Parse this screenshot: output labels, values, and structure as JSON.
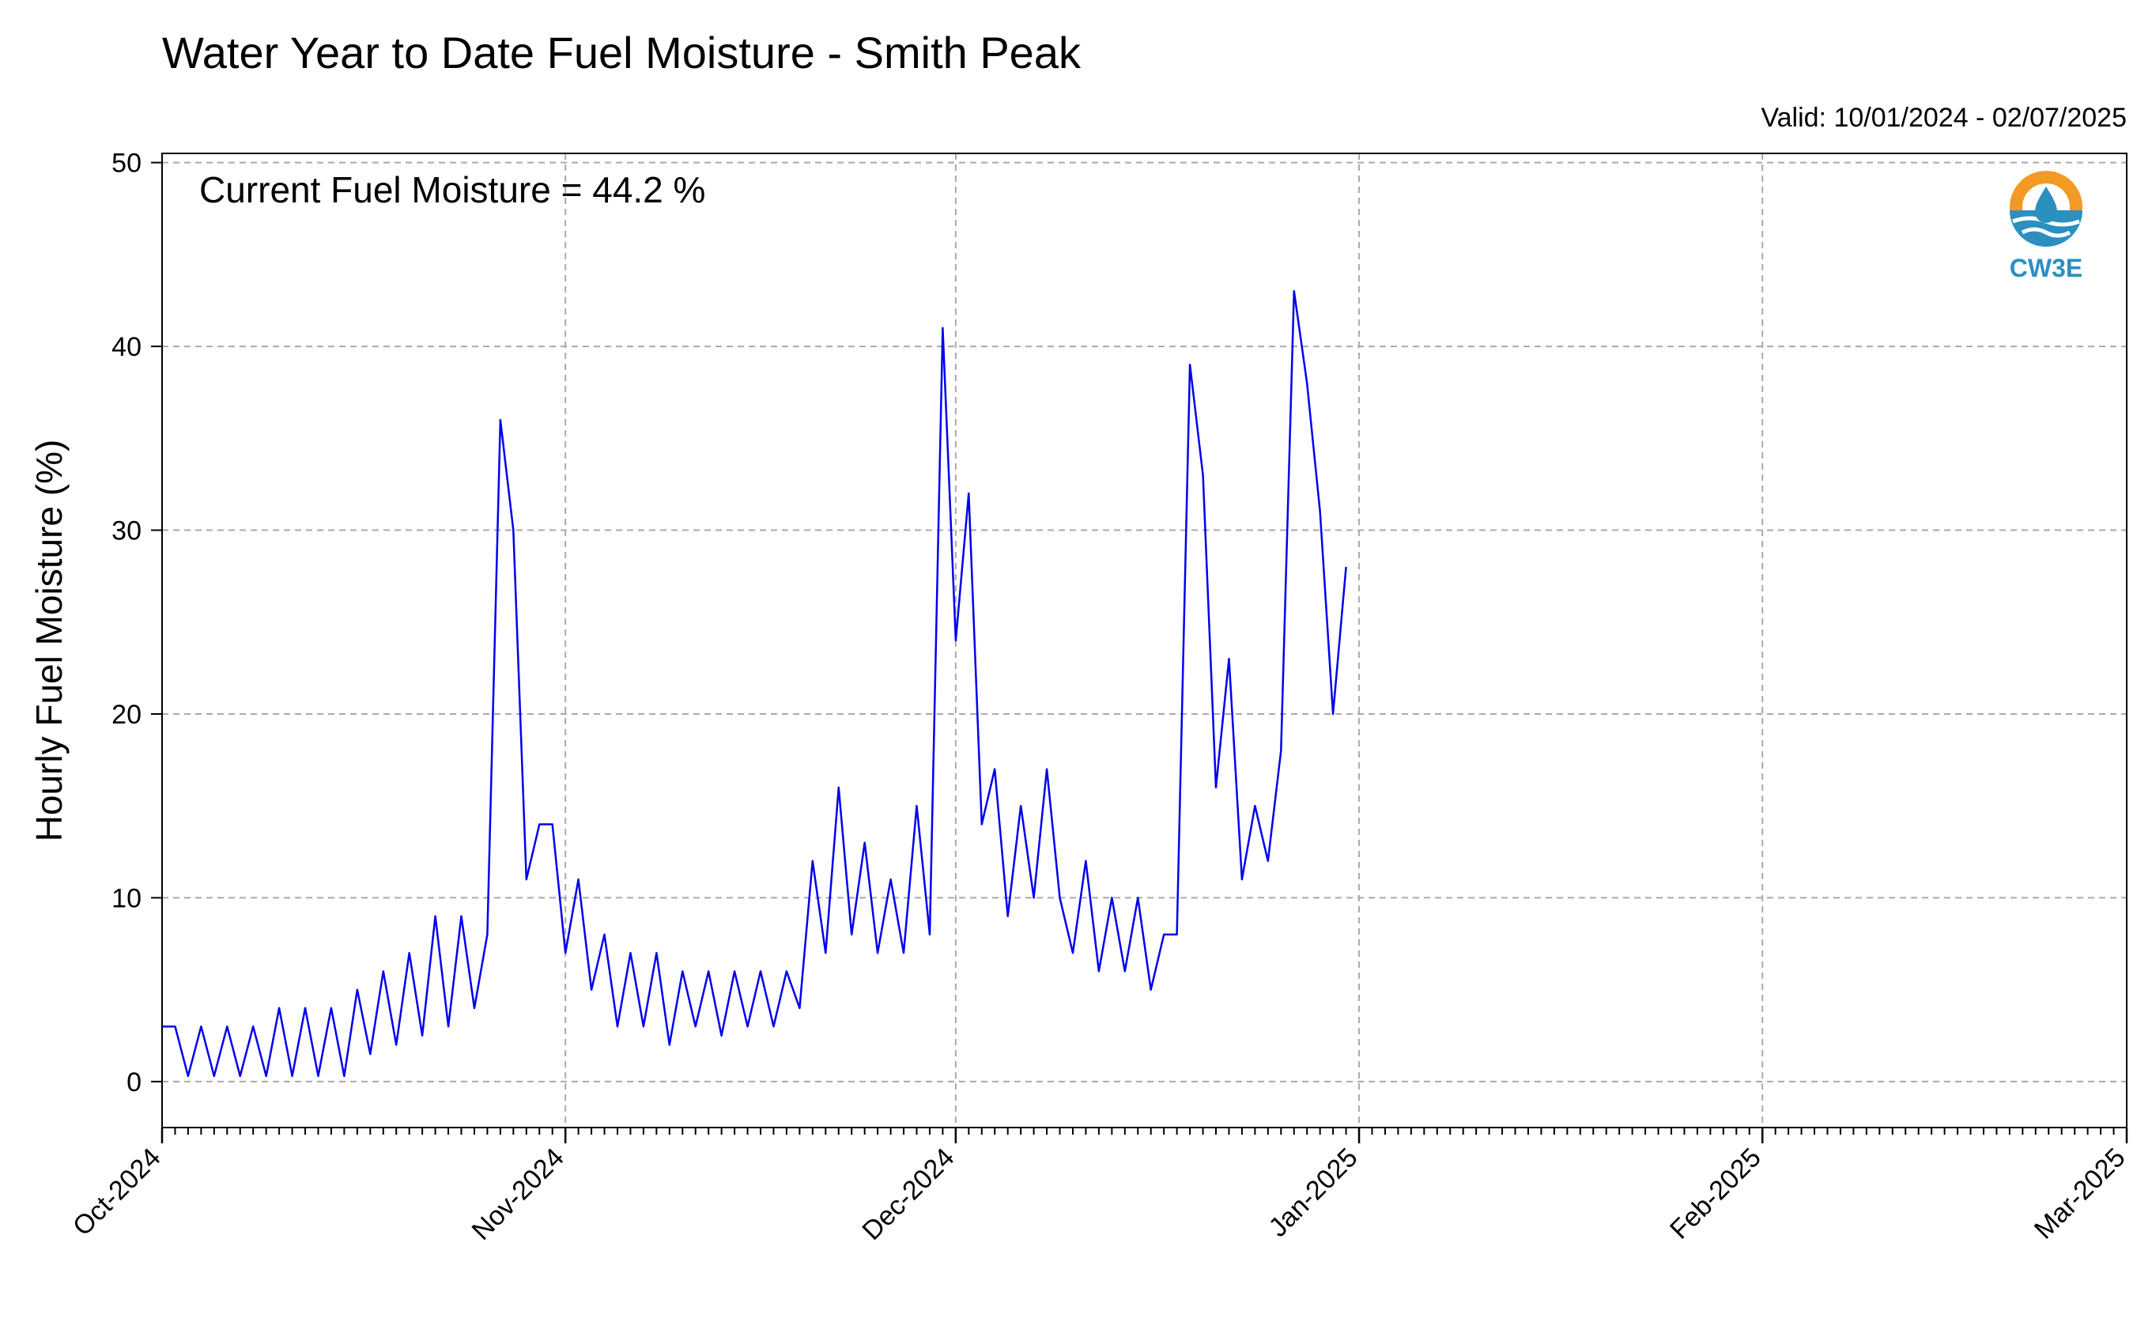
{
  "chart_data": {
    "type": "line",
    "title": "Water Year to Date Fuel Moisture - Smith Peak",
    "subtitle": "Valid: 10/01/2024 - 02/07/2025",
    "ylabel": "Hourly Fuel Moisture (%)",
    "xlabel": "",
    "annotation": "Current Fuel Moisture = 44.2 %",
    "logo_text": "CW3E",
    "xlim": [
      "2024-10-01",
      "2025-03-01"
    ],
    "ylim": [
      -2.5,
      50.5
    ],
    "yticks": [
      0,
      10,
      20,
      30,
      40,
      50
    ],
    "xticks": [
      {
        "date": "2024-10-01",
        "label": "Oct-2024"
      },
      {
        "date": "2024-11-01",
        "label": "Nov-2024"
      },
      {
        "date": "2024-12-01",
        "label": "Dec-2024"
      },
      {
        "date": "2025-01-01",
        "label": "Jan-2025"
      },
      {
        "date": "2025-02-01",
        "label": "Feb-2025"
      },
      {
        "date": "2025-03-01",
        "label": "Mar-2025"
      }
    ],
    "grid": true,
    "line_color": "#0000ee",
    "series": [
      {
        "points": [
          [
            "2024-10-01",
            3
          ],
          [
            "2024-10-02",
            3
          ],
          [
            "2024-10-03",
            0.3
          ],
          [
            "2024-10-04",
            3
          ],
          [
            "2024-10-05",
            0.3
          ],
          [
            "2024-10-06",
            3
          ],
          [
            "2024-10-07",
            0.3
          ],
          [
            "2024-10-08",
            3
          ],
          [
            "2024-10-09",
            0.3
          ],
          [
            "2024-10-10",
            4
          ],
          [
            "2024-10-11",
            0.3
          ],
          [
            "2024-10-12",
            4
          ],
          [
            "2024-10-13",
            0.3
          ],
          [
            "2024-10-14",
            4
          ],
          [
            "2024-10-15",
            0.3
          ],
          [
            "2024-10-16",
            5
          ],
          [
            "2024-10-17",
            1.5
          ],
          [
            "2024-10-18",
            6
          ],
          [
            "2024-10-19",
            2
          ],
          [
            "2024-10-20",
            7
          ],
          [
            "2024-10-21",
            2.5
          ],
          [
            "2024-10-22",
            9
          ],
          [
            "2024-10-23",
            3
          ],
          [
            "2024-10-24",
            9
          ],
          [
            "2024-10-25",
            4
          ],
          [
            "2024-10-26",
            8
          ],
          [
            "2024-10-27",
            36
          ],
          [
            "2024-10-28",
            30
          ],
          [
            "2024-10-29",
            11
          ],
          [
            "2024-10-30",
            14
          ],
          [
            "2024-10-31",
            14
          ],
          [
            "2024-11-01",
            7
          ],
          [
            "2024-11-02",
            11
          ],
          [
            "2024-11-03",
            5
          ],
          [
            "2024-11-04",
            8
          ],
          [
            "2024-11-05",
            3
          ],
          [
            "2024-11-06",
            7
          ],
          [
            "2024-11-07",
            3
          ],
          [
            "2024-11-08",
            7
          ],
          [
            "2024-11-09",
            2
          ],
          [
            "2024-11-10",
            6
          ],
          [
            "2024-11-11",
            3
          ],
          [
            "2024-11-12",
            6
          ],
          [
            "2024-11-13",
            2.5
          ],
          [
            "2024-11-14",
            6
          ],
          [
            "2024-11-15",
            3
          ],
          [
            "2024-11-16",
            6
          ],
          [
            "2024-11-17",
            3
          ],
          [
            "2024-11-18",
            6
          ],
          [
            "2024-11-19",
            4
          ],
          [
            "2024-11-20",
            12
          ],
          [
            "2024-11-21",
            7
          ],
          [
            "2024-11-22",
            16
          ],
          [
            "2024-11-23",
            8
          ],
          [
            "2024-11-24",
            13
          ],
          [
            "2024-11-25",
            7
          ],
          [
            "2024-11-26",
            11
          ],
          [
            "2024-11-27",
            7
          ],
          [
            "2024-11-28",
            15
          ],
          [
            "2024-11-29",
            8
          ],
          [
            "2024-11-30",
            41
          ],
          [
            "2024-12-01",
            24
          ],
          [
            "2024-12-02",
            32
          ],
          [
            "2024-12-03",
            14
          ],
          [
            "2024-12-04",
            17
          ],
          [
            "2024-12-05",
            9
          ],
          [
            "2024-12-06",
            15
          ],
          [
            "2024-12-07",
            10
          ],
          [
            "2024-12-08",
            17
          ],
          [
            "2024-12-09",
            10
          ],
          [
            "2024-12-10",
            7
          ],
          [
            "2024-12-11",
            12
          ],
          [
            "2024-12-12",
            6
          ],
          [
            "2024-12-13",
            10
          ],
          [
            "2024-12-14",
            6
          ],
          [
            "2024-12-15",
            10
          ],
          [
            "2024-12-16",
            5
          ],
          [
            "2024-12-17",
            8
          ],
          [
            "2024-12-18",
            8
          ],
          [
            "2024-12-19",
            39
          ],
          [
            "2024-12-20",
            33
          ],
          [
            "2024-12-21",
            16
          ],
          [
            "2024-12-22",
            23
          ],
          [
            "2024-12-23",
            11
          ],
          [
            "2024-12-24",
            15
          ],
          [
            "2024-12-25",
            12
          ],
          [
            "2024-12-26",
            18
          ],
          [
            "2024-12-27",
            43
          ],
          [
            "2024-12-28",
            38
          ],
          [
            "2024-12-29",
            31
          ],
          [
            "2024-12-30",
            20
          ],
          [
            "2024-12-31",
            28
          ]
        ]
      }
    ]
  }
}
